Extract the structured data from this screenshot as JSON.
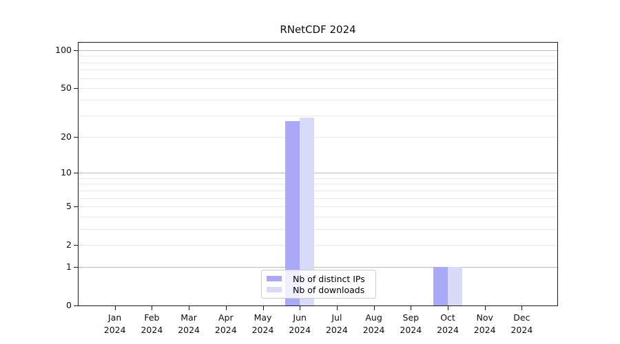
{
  "title": "RNetCDF 2024",
  "colors": {
    "ips": "#a9a9f7",
    "downloads": "#d9d9f8",
    "grid_decade": "#b9b9b9",
    "grid_light": "#e9e9e9",
    "spine": "#1a1a1a"
  },
  "legend": {
    "items": [
      {
        "label": "Nb of distinct IPs",
        "color_key": "ips"
      },
      {
        "label": "Nb of downloads",
        "color_key": "downloads"
      }
    ]
  },
  "y_axis": {
    "tick_labels": [
      "0",
      "1",
      "2",
      "5",
      "10",
      "20",
      "50",
      "100"
    ],
    "tick_values": [
      0,
      1,
      2,
      5,
      10,
      20,
      50,
      100
    ],
    "decade_lines": [
      1,
      10,
      100
    ],
    "light_lines": [
      2,
      3,
      4,
      5,
      6,
      7,
      8,
      9,
      20,
      30,
      40,
      50,
      60,
      70,
      80,
      90
    ],
    "top_value": 114.8
  },
  "x_axis": {
    "months": [
      "Jan",
      "Feb",
      "Mar",
      "Apr",
      "May",
      "Jun",
      "Jul",
      "Aug",
      "Sep",
      "Oct",
      "Nov",
      "Dec"
    ],
    "years": [
      "2024",
      "2024",
      "2024",
      "2024",
      "2024",
      "2024",
      "2024",
      "2024",
      "2024",
      "2024",
      "2024",
      "2024"
    ]
  },
  "chart_data": {
    "type": "bar",
    "title": "RNetCDF 2024",
    "categories": [
      "Jan 2024",
      "Feb 2024",
      "Mar 2024",
      "Apr 2024",
      "May 2024",
      "Jun 2024",
      "Jul 2024",
      "Aug 2024",
      "Sep 2024",
      "Oct 2024",
      "Nov 2024",
      "Dec 2024"
    ],
    "series": [
      {
        "name": "Nb of distinct IPs",
        "color": "#a9a9f7",
        "values": [
          0,
          0,
          0,
          0,
          0,
          27,
          0,
          0,
          0,
          1,
          0,
          0
        ]
      },
      {
        "name": "Nb of downloads",
        "color": "#d9d9f8",
        "values": [
          0,
          0,
          0,
          0,
          0,
          29,
          0,
          0,
          0,
          1,
          0,
          0
        ]
      }
    ],
    "xlabel": "",
    "ylabel": "",
    "yscale": "log1p",
    "yticks": [
      0,
      1,
      2,
      5,
      10,
      20,
      50,
      100
    ],
    "ylim": [
      0,
      114.8
    ],
    "grid": true,
    "legend_position": "lower-center"
  }
}
